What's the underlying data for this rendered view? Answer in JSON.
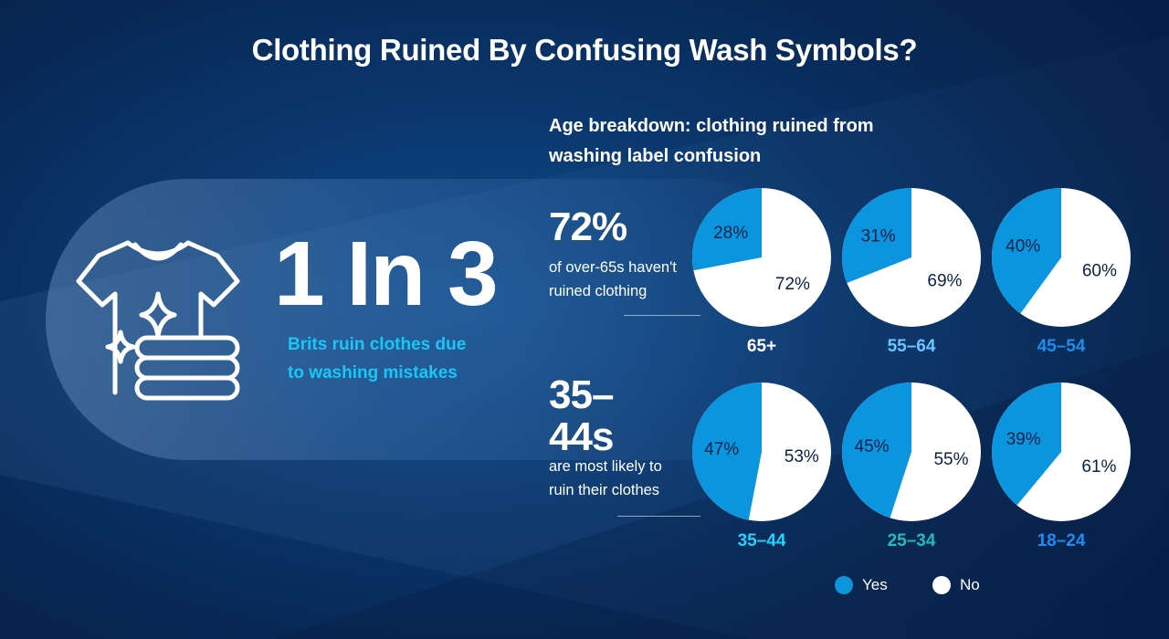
{
  "title": "Clothing Ruined By Confusing Wash Symbols?",
  "headline": {
    "stat": "1 In 3",
    "caption": "Brits ruin clothes due to washing mistakes"
  },
  "icon": "shirt-with-sparkles-and-folded-clothes-icon",
  "callouts": [
    {
      "value": "72%",
      "text": "of over-65s haven't ruined clothing"
    },
    {
      "value": "35–44s",
      "text": "are most likely to ruin their clothes"
    }
  ],
  "colors": {
    "yes": "#0b95df",
    "no": "#ffffff",
    "title_text": "#ffffff",
    "caption_text": "#18c7f5",
    "pie_label_text": "#0a2145",
    "age_labels": [
      "#ffffff",
      "#6cc5ff",
      "#1a8ff0",
      "#22d3ff",
      "#1fbfb5",
      "#1c8ef5"
    ]
  },
  "chart_data": {
    "type": "pie",
    "title": "Age breakdown: clothing ruined from washing label confusion",
    "legend": {
      "position": "bottom-right",
      "entries": [
        "Yes",
        "No"
      ]
    },
    "pies": [
      {
        "category": "65+",
        "values": {
          "Yes": 28,
          "No": 72
        },
        "labels": [
          "28%",
          "72%"
        ]
      },
      {
        "category": "55–64",
        "values": {
          "Yes": 31,
          "No": 69
        },
        "labels": [
          "31%",
          "69%"
        ]
      },
      {
        "category": "45–54",
        "values": {
          "Yes": 40,
          "No": 60
        },
        "labels": [
          "40%",
          "60%"
        ]
      },
      {
        "category": "35–44",
        "values": {
          "Yes": 47,
          "No": 53
        },
        "labels": [
          "47%",
          "53%"
        ]
      },
      {
        "category": "25–34",
        "values": {
          "Yes": 45,
          "No": 55
        },
        "labels": [
          "45%",
          "55%"
        ]
      },
      {
        "category": "18–24",
        "values": {
          "Yes": 39,
          "No": 61
        },
        "labels": [
          "39%",
          "61%"
        ]
      }
    ]
  }
}
